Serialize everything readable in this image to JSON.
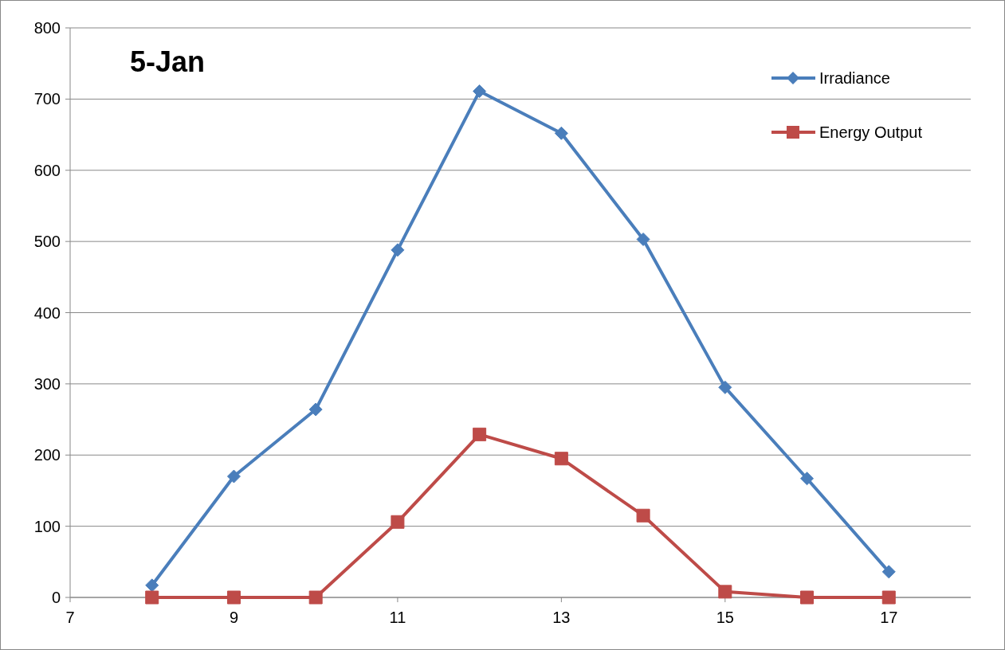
{
  "chart_data": {
    "type": "line",
    "title": "5-Jan",
    "x": [
      8,
      9,
      10,
      11,
      12,
      13,
      14,
      15,
      16,
      17
    ],
    "series": [
      {
        "name": "Irradiance",
        "color": "#4a7ebb",
        "marker": "diamond",
        "values": [
          17,
          170,
          264,
          488,
          711,
          652,
          503,
          295,
          167,
          36
        ]
      },
      {
        "name": "Energy Output",
        "color": "#be4b48",
        "marker": "square",
        "values": [
          0,
          0,
          0,
          106,
          229,
          195,
          115,
          8,
          0,
          0
        ]
      }
    ],
    "xlim": [
      7,
      18
    ],
    "xticks": [
      7,
      9,
      11,
      13,
      15,
      17
    ],
    "ylim": [
      0,
      800
    ],
    "yticks": [
      0,
      100,
      200,
      300,
      400,
      500,
      600,
      700,
      800
    ],
    "grid": "y",
    "legend": "top right",
    "line_style": "solid"
  }
}
